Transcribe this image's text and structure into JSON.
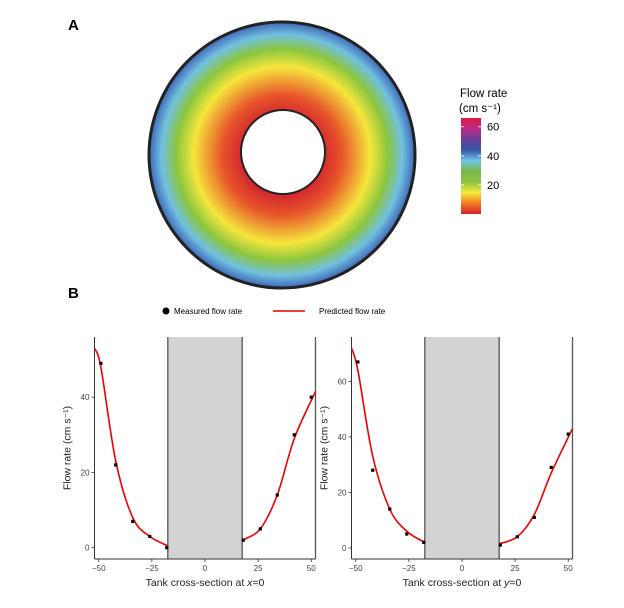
{
  "panel_labels": {
    "a": "A",
    "b": "B"
  },
  "colorbar": {
    "title_line1": "Flow rate",
    "title_line2": "(cm s⁻¹)",
    "range": [
      0,
      66
    ],
    "ticks": [
      "60",
      "40",
      "20"
    ],
    "tick_values": [
      60,
      40,
      20
    ],
    "colors": [
      "#d81e2a",
      "#f07a22",
      "#f6e93a",
      "#8bc53f",
      "#7ab648",
      "#6fc5e8",
      "#3657a7",
      "#6a3d98",
      "#c2288a",
      "#d81e3a"
    ]
  },
  "ring": {
    "ring_colors_inner_to_outer": [
      "#d42a2e",
      "#e8562a",
      "#f5e63c",
      "#8cc63f",
      "#70c0e0",
      "#3b5fb4"
    ],
    "outline_color": "#222222"
  },
  "legend": {
    "measured": "Measured flow rate",
    "predicted": "Predicted flow rate",
    "placement": "top"
  },
  "chart_data": [
    {
      "type": "scatter",
      "xlabel_prefix": "Tank cross-section at ",
      "xlabel_var": "x",
      "xlabel_suffix": "=0",
      "ylabel": "Flow rate (cm s⁻¹)",
      "xlim": [
        -52,
        52
      ],
      "ylim": [
        -3,
        56
      ],
      "xticks": [
        -50,
        -25,
        0,
        25,
        50
      ],
      "xtick_labels": [
        "−50",
        "−25",
        "0",
        "25",
        "50"
      ],
      "yticks": [
        0,
        20,
        40
      ],
      "ytick_labels": [
        "0",
        "20",
        "40"
      ],
      "shaded_region": [
        -17.5,
        17.5
      ],
      "series": [
        {
          "name": "Measured flow rate",
          "x": [
            -49,
            -42,
            -34,
            -26,
            -18,
            18,
            26,
            34,
            42,
            50
          ],
          "y": [
            49,
            22,
            7,
            3,
            0,
            2,
            5,
            14,
            30,
            40
          ]
        },
        {
          "name": "Predicted flow rate",
          "segments": [
            {
              "x": [
                -52,
                -49,
                -42,
                -34,
                -26,
                -17.5
              ],
              "y": [
                53,
                48,
                23,
                8,
                3,
                0.5
              ]
            },
            {
              "x": [
                17.5,
                26,
                34,
                42,
                52
              ],
              "y": [
                2,
                5,
                14,
                29,
                41.5
              ]
            }
          ]
        }
      ],
      "grid": false
    },
    {
      "type": "scatter",
      "xlabel_prefix": "Tank cross-section at ",
      "xlabel_var": "y",
      "xlabel_suffix": "=0",
      "ylabel": "Flow rate (cm s⁻¹)",
      "xlim": [
        -52,
        52
      ],
      "ylim": [
        -4,
        76
      ],
      "xticks": [
        -50,
        -25,
        0,
        25,
        50
      ],
      "xtick_labels": [
        "−50",
        "−25",
        "0",
        "25",
        "50"
      ],
      "yticks": [
        0,
        20,
        40,
        60
      ],
      "ytick_labels": [
        "0",
        "20",
        "40",
        "60"
      ],
      "shaded_region": [
        -17.5,
        17.5
      ],
      "series": [
        {
          "name": "Measured flow rate",
          "x": [
            -49,
            -42,
            -34,
            -26,
            -18,
            18,
            26,
            34,
            42,
            50
          ],
          "y": [
            67,
            28,
            14,
            5,
            2,
            1,
            4,
            11,
            29,
            41
          ]
        },
        {
          "name": "Predicted flow rate",
          "segments": [
            {
              "x": [
                -52,
                -49,
                -42,
                -34,
                -26,
                -17.5
              ],
              "y": [
                72,
                64,
                33,
                14,
                6,
                2
              ]
            },
            {
              "x": [
                17.5,
                26,
                34,
                42,
                52
              ],
              "y": [
                1.5,
                4,
                12,
                27,
                43
              ]
            }
          ]
        }
      ],
      "grid": false
    }
  ]
}
